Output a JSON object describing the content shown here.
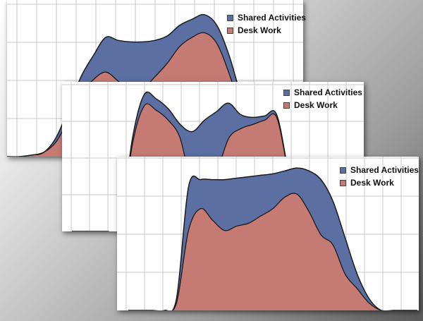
{
  "colors": {
    "shared": "#5b6fa2",
    "desk": "#c57a74",
    "outline": "#1a1a1a",
    "grid": "#c9c9c9"
  },
  "chart_data": [
    {
      "type": "area",
      "stacked": true,
      "grid": true,
      "legend": "top-right",
      "x": [
        0,
        1,
        2,
        3,
        4,
        5,
        6,
        7,
        8,
        9,
        10,
        11,
        12,
        13,
        14,
        15,
        16,
        17,
        18,
        19,
        20,
        21,
        22,
        23,
        24
      ],
      "xlim": [
        0,
        24
      ],
      "ylim": [
        0,
        100
      ],
      "series": [
        {
          "name": "Desk Work",
          "color": "#c57a74",
          "values": [
            0,
            0,
            1,
            3,
            10,
            25,
            41,
            51,
            56,
            50,
            43,
            45,
            53,
            62,
            73,
            79,
            82,
            75,
            55,
            30,
            10,
            2,
            0,
            0,
            0
          ]
        },
        {
          "name": "Shared Activities",
          "color": "#5b6fa2",
          "values": [
            0,
            0,
            0,
            0,
            3,
            7,
            12,
            16,
            23,
            27,
            33,
            31,
            24,
            18,
            14,
            12,
            12,
            12,
            12,
            9,
            4,
            1,
            0,
            0,
            0
          ]
        }
      ],
      "legend_labels": {
        "shared": "Shared Activities",
        "desk": "Desk Work"
      }
    },
    {
      "type": "area",
      "stacked": true,
      "grid": true,
      "legend": "top-right",
      "x": [
        0,
        1,
        2,
        3,
        4,
        5,
        6,
        7,
        8,
        9,
        10,
        11,
        12,
        13,
        14,
        15,
        16,
        17,
        18,
        19,
        20,
        21,
        22,
        23,
        24
      ],
      "xlim": [
        0,
        24
      ],
      "ylim": [
        0,
        100
      ],
      "series": [
        {
          "name": "Desk Work",
          "color": "#c57a74",
          "values": [
            0,
            0,
            0,
            0,
            0,
            60,
            88,
            85,
            78,
            65,
            30,
            20,
            40,
            65,
            72,
            75,
            78,
            80,
            40,
            5,
            0,
            0,
            0,
            0,
            0
          ]
        },
        {
          "name": "Shared Activities",
          "color": "#5b6fa2",
          "values": [
            0,
            0,
            0,
            0,
            0,
            4,
            8,
            8,
            8,
            10,
            40,
            58,
            44,
            25,
            10,
            5,
            3,
            2,
            1,
            0,
            0,
            0,
            0,
            0,
            0
          ]
        }
      ],
      "legend_labels": {
        "shared": "Shared Activities",
        "desk": "Desk Work"
      }
    },
    {
      "type": "area",
      "stacked": true,
      "grid": true,
      "legend": "top-right",
      "x": [
        0,
        1,
        2,
        3,
        4,
        5,
        6,
        7,
        8,
        9,
        10,
        11,
        12,
        13,
        14,
        15,
        16,
        17,
        18,
        19,
        20,
        21,
        22,
        23,
        24
      ],
      "xlim": [
        0,
        24
      ],
      "ylim": [
        0,
        100
      ],
      "series": [
        {
          "name": "Desk Work",
          "color": "#c57a74",
          "values": [
            0,
            0,
            0,
            0,
            5,
            55,
            70,
            62,
            55,
            58,
            60,
            65,
            70,
            78,
            80,
            68,
            52,
            45,
            25,
            15,
            5,
            0,
            0,
            0,
            0
          ]
        },
        {
          "name": "Shared Activities",
          "color": "#5b6fa2",
          "values": [
            0,
            0,
            0,
            0,
            3,
            30,
            20,
            28,
            35,
            33,
            32,
            28,
            24,
            18,
            18,
            28,
            38,
            30,
            25,
            10,
            3,
            0,
            0,
            0,
            0
          ]
        }
      ],
      "legend_labels": {
        "shared": "Shared Activities",
        "desk": "Desk Work"
      }
    }
  ]
}
